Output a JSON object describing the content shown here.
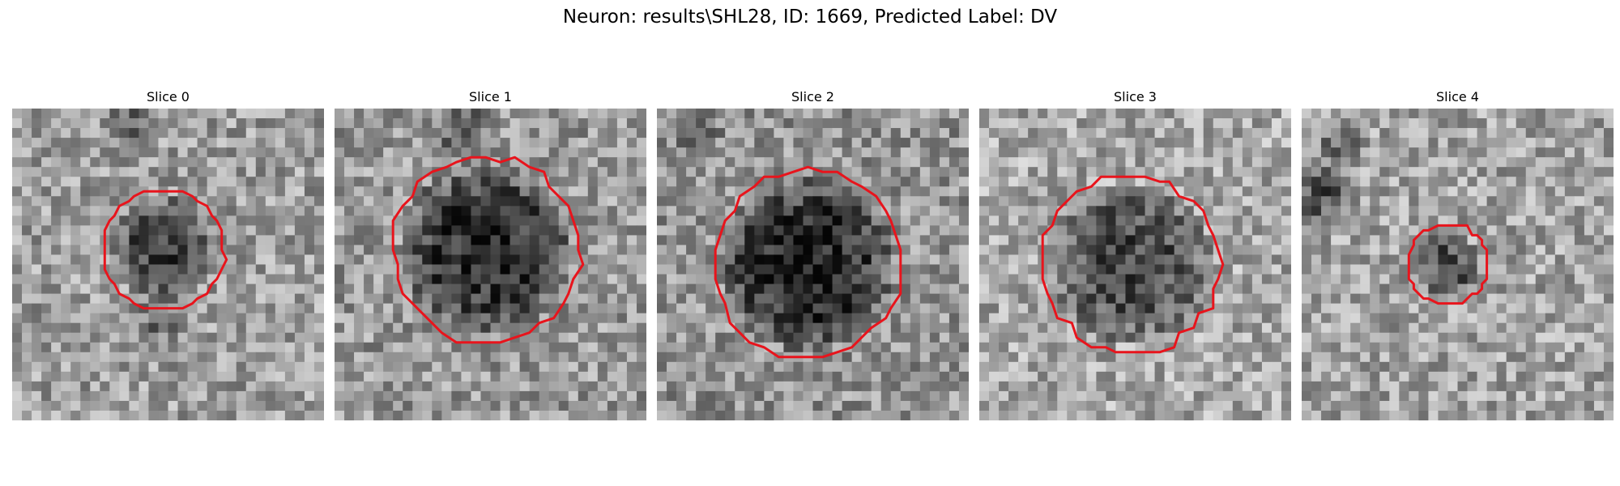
{
  "figure": {
    "title": "Neuron: results\\SHL28, ID: 1669, Predicted Label: DV"
  },
  "colors": {
    "contour": "#e8141c",
    "background": "#ffffff"
  },
  "slices": [
    {
      "title": "Slice 0"
    },
    {
      "title": "Slice 1"
    },
    {
      "title": "Slice 2"
    },
    {
      "title": "Slice 3"
    },
    {
      "title": "Slice 4"
    }
  ]
}
